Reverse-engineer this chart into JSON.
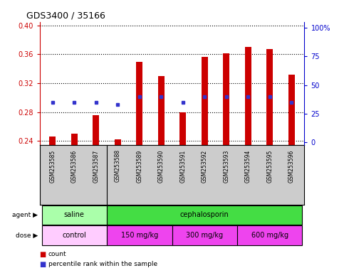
{
  "title": "GDS3400 / 35166",
  "samples": [
    "GSM253585",
    "GSM253586",
    "GSM253587",
    "GSM253588",
    "GSM253589",
    "GSM253590",
    "GSM253591",
    "GSM253592",
    "GSM253593",
    "GSM253594",
    "GSM253595",
    "GSM253596"
  ],
  "count_values": [
    0.246,
    0.25,
    0.276,
    0.242,
    0.35,
    0.33,
    0.28,
    0.357,
    0.361,
    0.37,
    0.367,
    0.332
  ],
  "percentile_values": [
    35.0,
    35.0,
    35.0,
    33.0,
    40.0,
    40.0,
    35.0,
    40.0,
    40.0,
    40.0,
    40.0,
    35.0
  ],
  "ylim_left": [
    0.235,
    0.405
  ],
  "ylim_right": [
    -2,
    105
  ],
  "yticks_left": [
    0.24,
    0.28,
    0.32,
    0.36,
    0.4
  ],
  "yticks_right": [
    0,
    25,
    50,
    75,
    100
  ],
  "ytick_labels_right": [
    "0",
    "25",
    "50",
    "75",
    "100%"
  ],
  "bar_color": "#cc0000",
  "dot_color": "#3333cc",
  "agent_saline_color": "#aaffaa",
  "agent_ceph_color": "#44dd44",
  "dose_control_color": "#ffccff",
  "dose_other_color": "#ee44ee",
  "label_bg_color": "#cccccc",
  "chart_bg_color": "#ffffff",
  "tick_color_left": "#cc0000",
  "tick_color_right": "#0000cc",
  "bar_width": 0.3,
  "count_baseline": 0.235
}
